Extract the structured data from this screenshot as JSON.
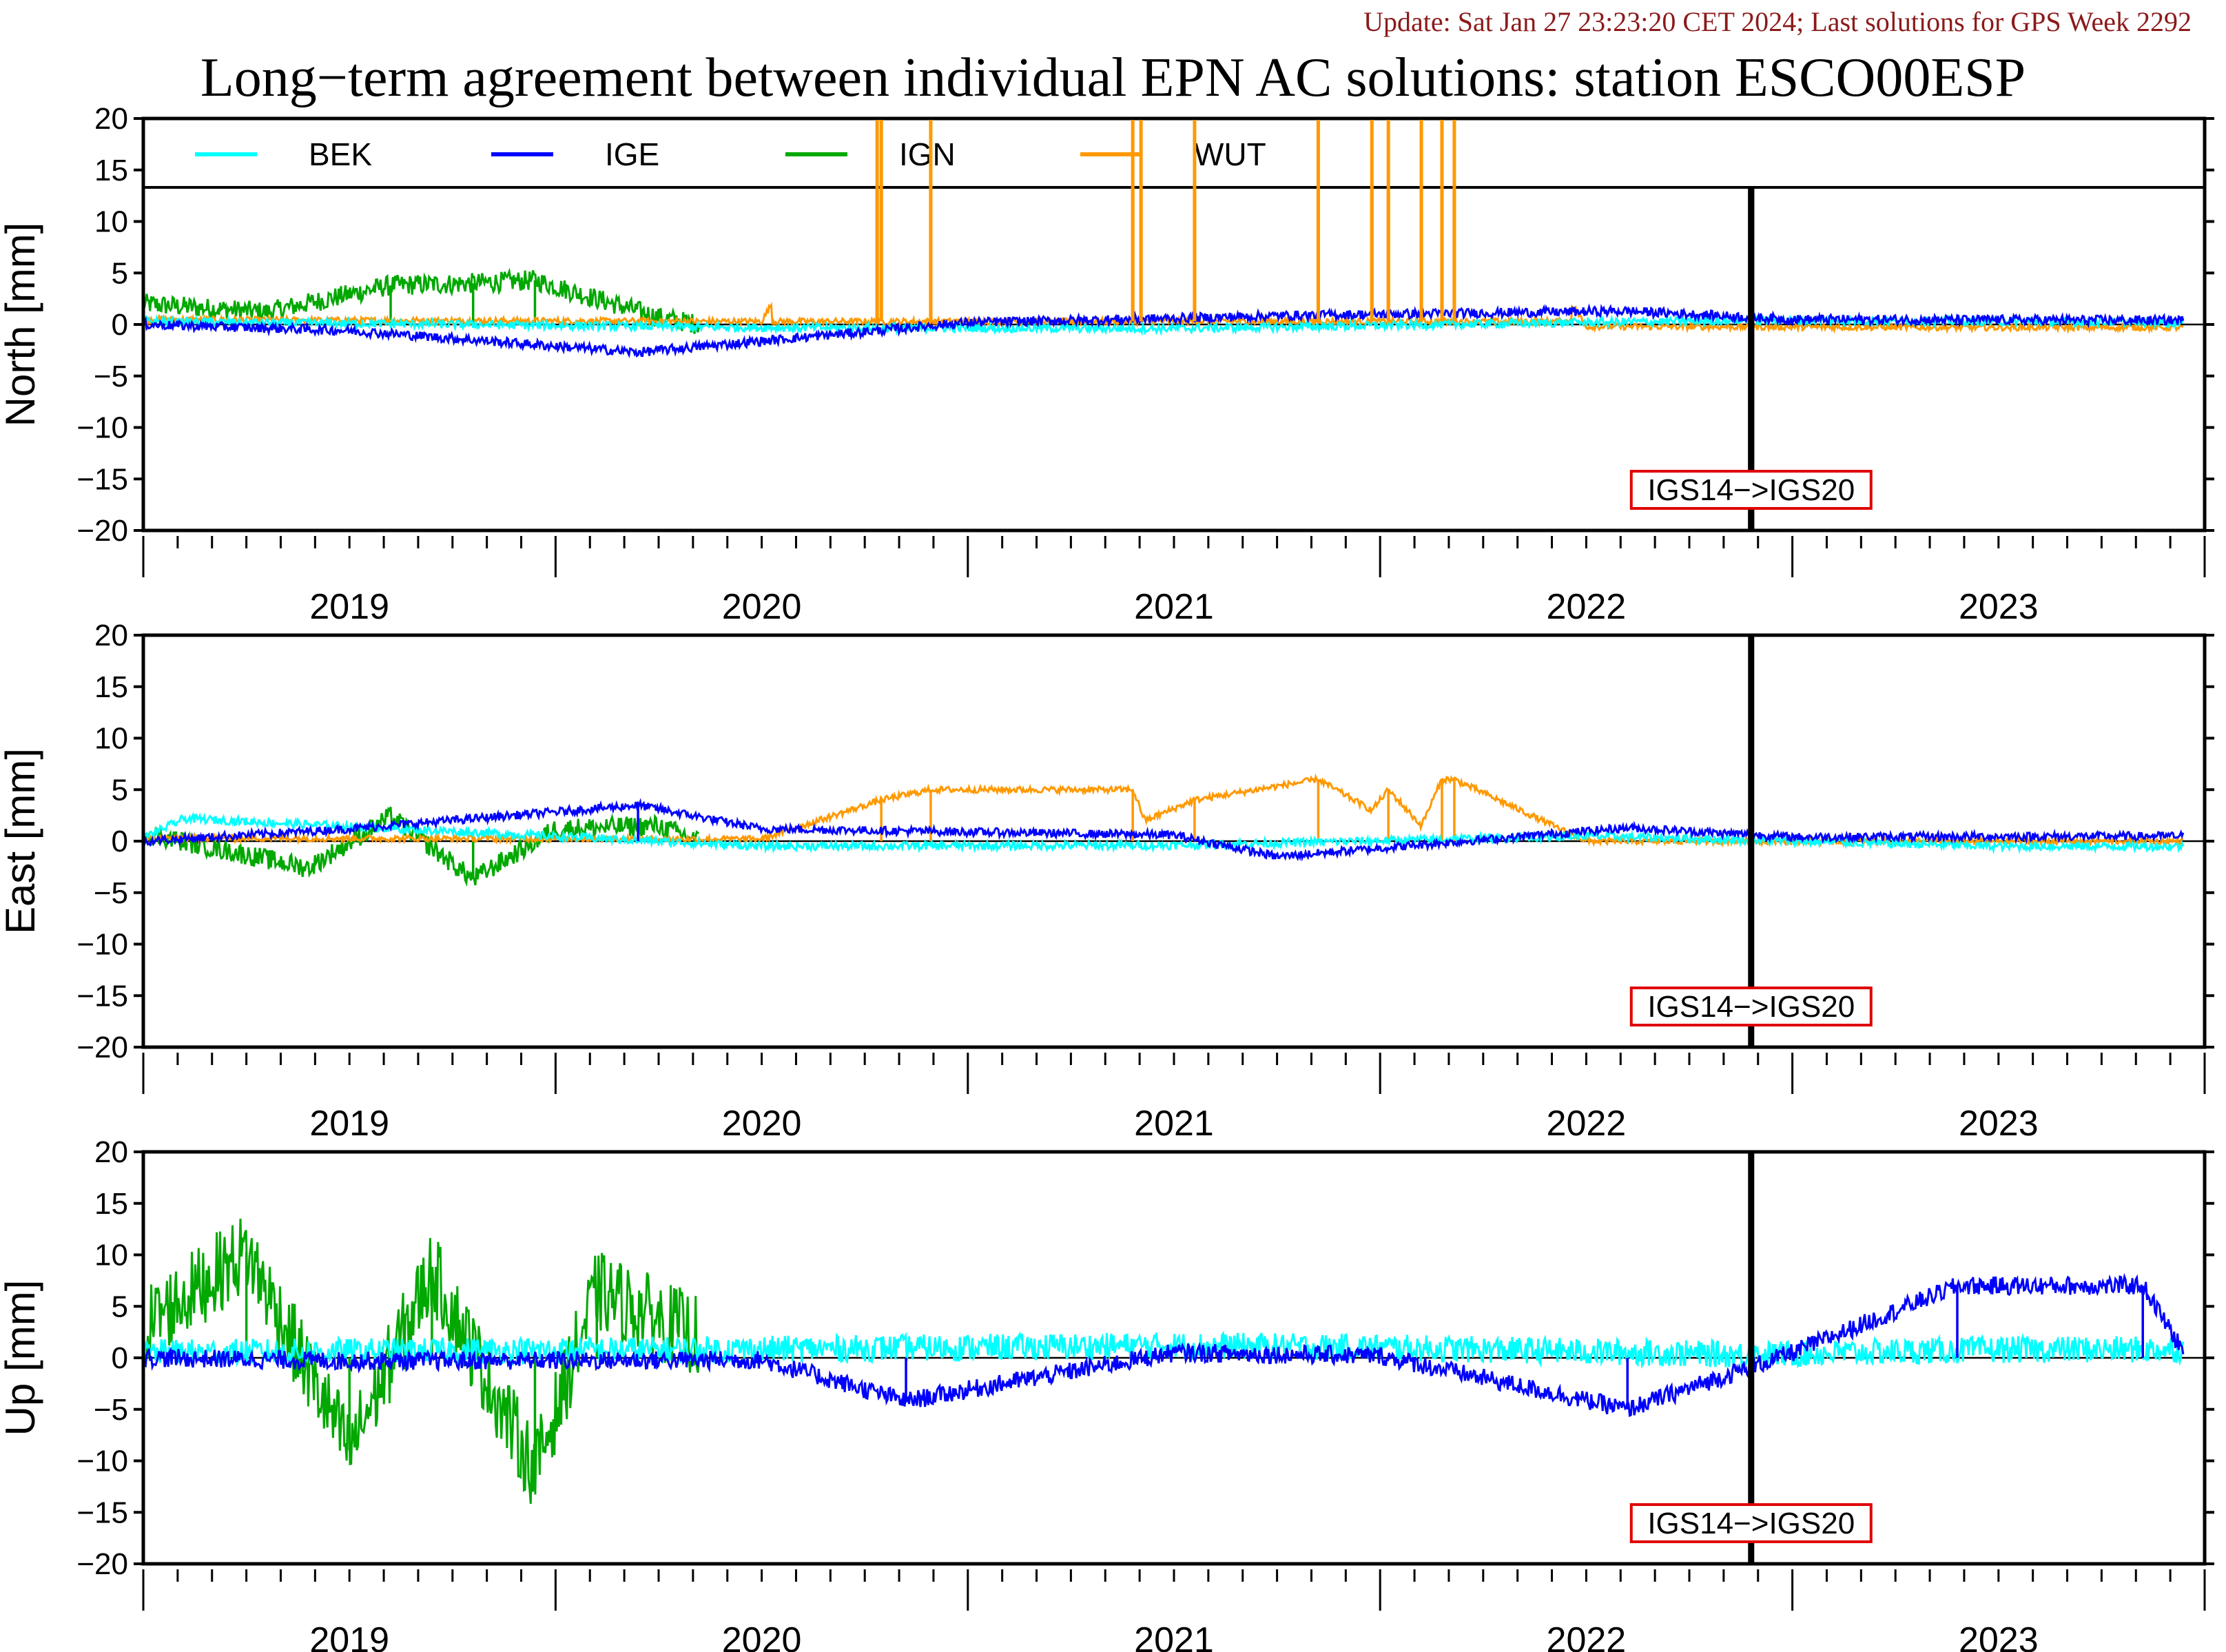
{
  "header": {
    "update_text": "Update: Sat Jan 27 23:23:20 CET 2024; Last solutions for GPS Week 2292",
    "title": "Long−term agreement between individual EPN AC solutions: station ESCO00ESP"
  },
  "chart_data": [
    {
      "type": "line",
      "component": "North",
      "ylabel": "North [mm]",
      "ylim": [
        -20,
        20
      ],
      "yticks": [
        "20",
        "15",
        "10",
        "5",
        "0",
        "−5",
        "−10",
        "−15",
        "−20"
      ],
      "xlim": [
        2018.5,
        2023.5
      ],
      "x_tick_labels": [
        "2019",
        "2020",
        "2021",
        "2022",
        "2023"
      ],
      "legend": {
        "placement": "top",
        "entries": [
          "BEK",
          "IGE",
          "IGN",
          "WUT"
        ]
      },
      "annotation": {
        "text": "IGS14−>IGS20",
        "x": 2022.4
      },
      "series": [
        {
          "name": "BEK",
          "color": "#00ffff",
          "x": [
            2018.5,
            2020.0,
            2021.0,
            2022.0,
            2022.4,
            2023.0,
            2023.45
          ],
          "y": [
            0.3,
            -0.3,
            -0.4,
            0.2,
            0.4,
            0.3,
            0.2
          ],
          "noise": 0.4
        },
        {
          "name": "IGE",
          "color": "#0000ff",
          "x": [
            2018.5,
            2019.0,
            2019.7,
            2020.5,
            2021.0,
            2021.3,
            2022.1,
            2022.5,
            2023.45
          ],
          "y": [
            0.0,
            -0.6,
            -2.7,
            0.2,
            0.6,
            0.9,
            1.3,
            0.5,
            0.4
          ],
          "noise": 0.45
        },
        {
          "name": "IGN",
          "color": "#00a800",
          "x": [
            2018.5,
            2018.8,
            2019.1,
            2019.3,
            2019.45,
            2019.75,
            2019.85
          ],
          "y": [
            2.0,
            1.2,
            3.8,
            4.0,
            4.3,
            0.7,
            0.0
          ],
          "noise": 1.0
        },
        {
          "name": "WUT",
          "color": "#ff9900",
          "x": [
            2018.5,
            2019.0,
            2020.0,
            2020.28,
            2020.29,
            2020.41,
            2020.9,
            2020.92,
            2021.05,
            2021.35,
            2021.48,
            2021.52,
            2021.6,
            2021.65,
            2021.68,
            2022.0,
            2023.0,
            2023.45
          ],
          "y": [
            0.5,
            0.4,
            0.3,
            20,
            20,
            20,
            20,
            20,
            20,
            20,
            20,
            20,
            20,
            20,
            20,
            -0.2,
            -0.3,
            -0.3
          ],
          "noise": 0.3
        }
      ]
    },
    {
      "type": "line",
      "component": "East",
      "ylabel": "East [mm]",
      "ylim": [
        -20,
        20
      ],
      "yticks": [
        "20",
        "15",
        "10",
        "5",
        "0",
        "−5",
        "−10",
        "−15",
        "−20"
      ],
      "xlim": [
        2018.5,
        2023.5
      ],
      "x_tick_labels": [
        "2019",
        "2020",
        "2021",
        "2022",
        "2023"
      ],
      "annotation": {
        "text": "IGS14−>IGS20",
        "x": 2022.4
      },
      "series": [
        {
          "name": "BEK",
          "color": "#00ffff",
          "x": [
            2018.5,
            2018.6,
            2020.0,
            2021.0,
            2022.0,
            2023.0,
            2023.45
          ],
          "y": [
            0.3,
            2.2,
            -0.5,
            -0.4,
            0.5,
            -0.5,
            -0.5
          ],
          "noise": 0.4
        },
        {
          "name": "IGE",
          "color": "#0000ff",
          "x": [
            2018.5,
            2019.0,
            2019.7,
            2020.0,
            2021.0,
            2021.25,
            2022.1,
            2022.5,
            2023.45
          ],
          "y": [
            0.0,
            1.2,
            3.5,
            1.2,
            0.6,
            -1.5,
            1.3,
            0.4,
            0.5
          ],
          "noise": 0.4
        },
        {
          "name": "IGN",
          "color": "#00a800",
          "x": [
            2018.5,
            2018.9,
            2019.1,
            2019.3,
            2019.5,
            2019.75,
            2019.85
          ],
          "y": [
            0.8,
            -2.6,
            2.4,
            -3.7,
            1.2,
            1.5,
            0.0
          ],
          "noise": 1.0
        },
        {
          "name": "WUT",
          "color": "#ff9900",
          "x": [
            2018.5,
            2020.0,
            2020.29,
            2020.41,
            2020.9,
            2020.93,
            2021.05,
            2021.35,
            2021.48,
            2021.52,
            2021.6,
            2021.65,
            2021.68,
            2022.0,
            2023.45
          ],
          "y": [
            0.3,
            0.2,
            4.0,
            5.0,
            5.0,
            2.0,
            4.0,
            6.0,
            3.0,
            5.0,
            1.5,
            6.0,
            6.0,
            0.0,
            0.0
          ],
          "noise": 0.3
        }
      ]
    },
    {
      "type": "line",
      "component": "Up",
      "ylabel": "Up [mm]",
      "ylim": [
        -20,
        20
      ],
      "yticks": [
        "20",
        "15",
        "10",
        "5",
        "0",
        "−5",
        "−10",
        "−15",
        "−20"
      ],
      "xlim": [
        2018.5,
        2023.5
      ],
      "x_tick_labels": [
        "2019",
        "2020",
        "2021",
        "2022",
        "2023"
      ],
      "annotation": {
        "text": "IGS14−>IGS20",
        "x": 2022.4
      },
      "series": [
        {
          "name": "BEK",
          "color": "#00ffff",
          "x": [
            2018.5,
            2019.85,
            2020.5,
            2021.0,
            2021.5,
            2022.0,
            2022.4,
            2023.0,
            2023.45
          ],
          "y": [
            0.5,
            0.8,
            1.0,
            1.2,
            1.0,
            0.6,
            0.3,
            0.8,
            0.8
          ],
          "noise": 1.3
        },
        {
          "name": "IGE",
          "color": "#0000ff",
          "x": [
            2018.5,
            2019.0,
            2020.0,
            2020.35,
            2021.0,
            2021.5,
            2022.1,
            2022.5,
            2022.9,
            2023.35,
            2023.45
          ],
          "y": [
            0.0,
            -0.3,
            -0.2,
            -4.2,
            0.5,
            0.2,
            -5.0,
            0.5,
            7.0,
            7.0,
            0.5
          ],
          "noise": 0.9
        },
        {
          "name": "IGN",
          "color": "#00a800",
          "x": [
            2018.5,
            2018.75,
            2019.0,
            2019.2,
            2019.45,
            2019.6,
            2019.85
          ],
          "y": [
            3.0,
            10.3,
            -9.0,
            8.5,
            -11.0,
            6.5,
            2.0
          ],
          "noise": 4.0
        }
      ]
    }
  ]
}
